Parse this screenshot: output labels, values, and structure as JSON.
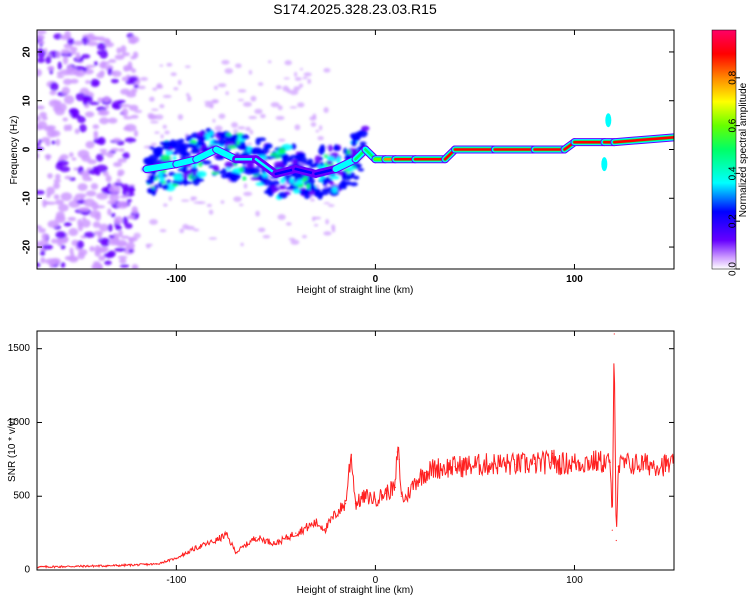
{
  "chart_data": [
    {
      "type": "heatmap",
      "title": "S174.2025.328.23.03.R15",
      "xlabel": "Height of straight line (km)",
      "ylabel": "Frequency (Hz)",
      "xlim": [
        -170,
        150
      ],
      "ylim": [
        -24.5,
        24.5
      ],
      "x_ticks": [
        -100,
        0,
        100
      ],
      "y_ticks": [
        -20,
        -10,
        0,
        10,
        20
      ],
      "colorbar": {
        "label": "Normalized spectral amplitude",
        "range": [
          0,
          1
        ],
        "ticks": [
          0.0,
          0.2,
          0.4,
          0.6,
          0.8
        ],
        "tick_labels": [
          "0.0",
          "0.2",
          "0.4",
          "0.6",
          "0.8"
        ],
        "colormap": [
          "#ffffff",
          "#cc99ff",
          "#6600ff",
          "#0000ff",
          "#00ffff",
          "#00ff66",
          "#66ff00",
          "#ffff00",
          "#ff8800",
          "#ff0000",
          "#ff0066"
        ]
      },
      "ridge": {
        "description": "dominant frequency ridge",
        "x": [
          -115,
          -100,
          -90,
          -80,
          -70,
          -60,
          -50,
          -40,
          -30,
          -20,
          -10,
          -5,
          0,
          5,
          10,
          20,
          35,
          40,
          60,
          80,
          95,
          100,
          115,
          120,
          150
        ],
        "freq": [
          -4,
          -3,
          -2,
          0,
          -2,
          -2,
          -5,
          -4,
          -5,
          -4,
          -2,
          0,
          -2,
          -2,
          -2,
          -2,
          -2,
          0,
          0,
          0,
          0,
          1.5,
          1.5,
          1.5,
          2.5
        ],
        "amplitude": [
          0.3,
          0.3,
          0.35,
          0.3,
          0.3,
          0.25,
          0.25,
          0.2,
          0.2,
          0.3,
          0.45,
          0.4,
          0.6,
          0.75,
          0.85,
          0.9,
          0.9,
          0.9,
          0.9,
          0.9,
          0.9,
          0.9,
          0.9,
          0.9,
          0.85
        ]
      },
      "noise_region": {
        "x_range": [
          -170,
          -120
        ],
        "freq_range": [
          -24.5,
          24.5
        ],
        "amplitude": 0.1
      }
    },
    {
      "type": "line",
      "xlabel": "Height of straight line (km)",
      "ylabel": "SNR (10 * v/v)",
      "xlim": [
        -170,
        150
      ],
      "ylim": [
        0,
        1620
      ],
      "x_ticks": [
        -100,
        0,
        100
      ],
      "y_ticks": [
        0,
        500,
        1000,
        1500
      ],
      "series": [
        {
          "name": "SNR",
          "color": "#ff2020",
          "x": [
            -170,
            -150,
            -130,
            -110,
            -100,
            -90,
            -80,
            -75,
            -70,
            -60,
            -55,
            -50,
            -40,
            -30,
            -25,
            -20,
            -15,
            -13,
            -12,
            -10,
            -5,
            0,
            5,
            10,
            11,
            12,
            13,
            15,
            20,
            25,
            30,
            40,
            50,
            60,
            70,
            80,
            88,
            89,
            90,
            100,
            110,
            118,
            119,
            120,
            121,
            122,
            125,
            140,
            150
          ],
          "y": [
            20,
            25,
            30,
            40,
            80,
            150,
            200,
            240,
            120,
            220,
            200,
            180,
            250,
            320,
            280,
            380,
            450,
            700,
            780,
            450,
            500,
            480,
            520,
            560,
            800,
            750,
            500,
            480,
            600,
            660,
            690,
            700,
            710,
            720,
            715,
            720,
            730,
            790,
            720,
            725,
            735,
            730,
            270,
            1600,
            200,
            700,
            720,
            715,
            710
          ]
        }
      ]
    }
  ]
}
